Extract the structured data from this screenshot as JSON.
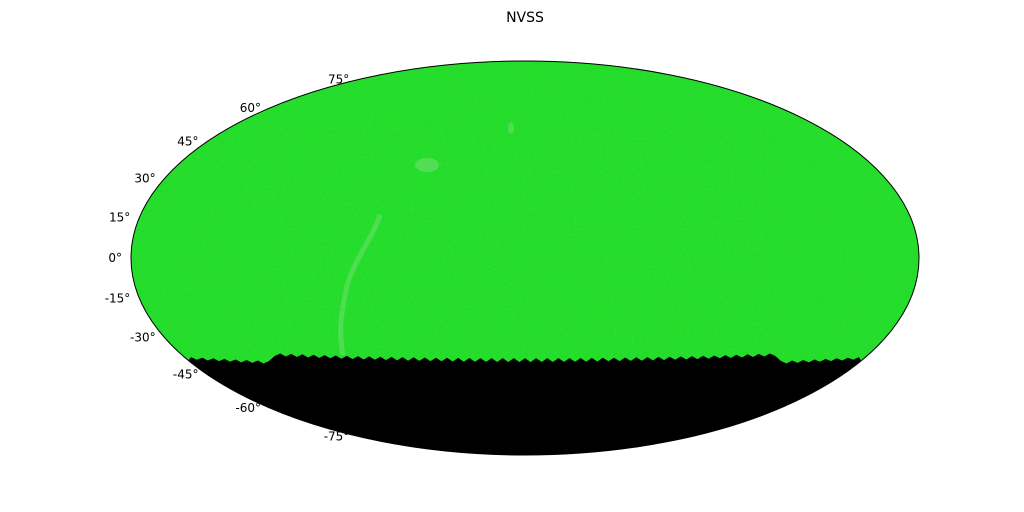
{
  "chart_data": {
    "type": "heatmap",
    "projection": "mollweide",
    "title": "NVSS",
    "grid": false,
    "colors": {
      "coverage": "#24dc2a",
      "coverage_light": "#6fe06f",
      "coverage_dark": "#14c81a",
      "masked_region": "#000000",
      "outline": "#000000"
    },
    "coverage_dec_min": -40,
    "latitude_ticks": [
      {
        "value": 75,
        "label": "75°"
      },
      {
        "value": 60,
        "label": "60°"
      },
      {
        "value": 45,
        "label": "45°"
      },
      {
        "value": 30,
        "label": "30°"
      },
      {
        "value": 15,
        "label": "15°"
      },
      {
        "value": 0,
        "label": "0°"
      },
      {
        "value": -15,
        "label": "-15°"
      },
      {
        "value": -30,
        "label": "-30°"
      },
      {
        "value": -45,
        "label": "-45°"
      },
      {
        "value": -60,
        "label": "-60°"
      },
      {
        "value": -75,
        "label": "-75°"
      }
    ]
  }
}
